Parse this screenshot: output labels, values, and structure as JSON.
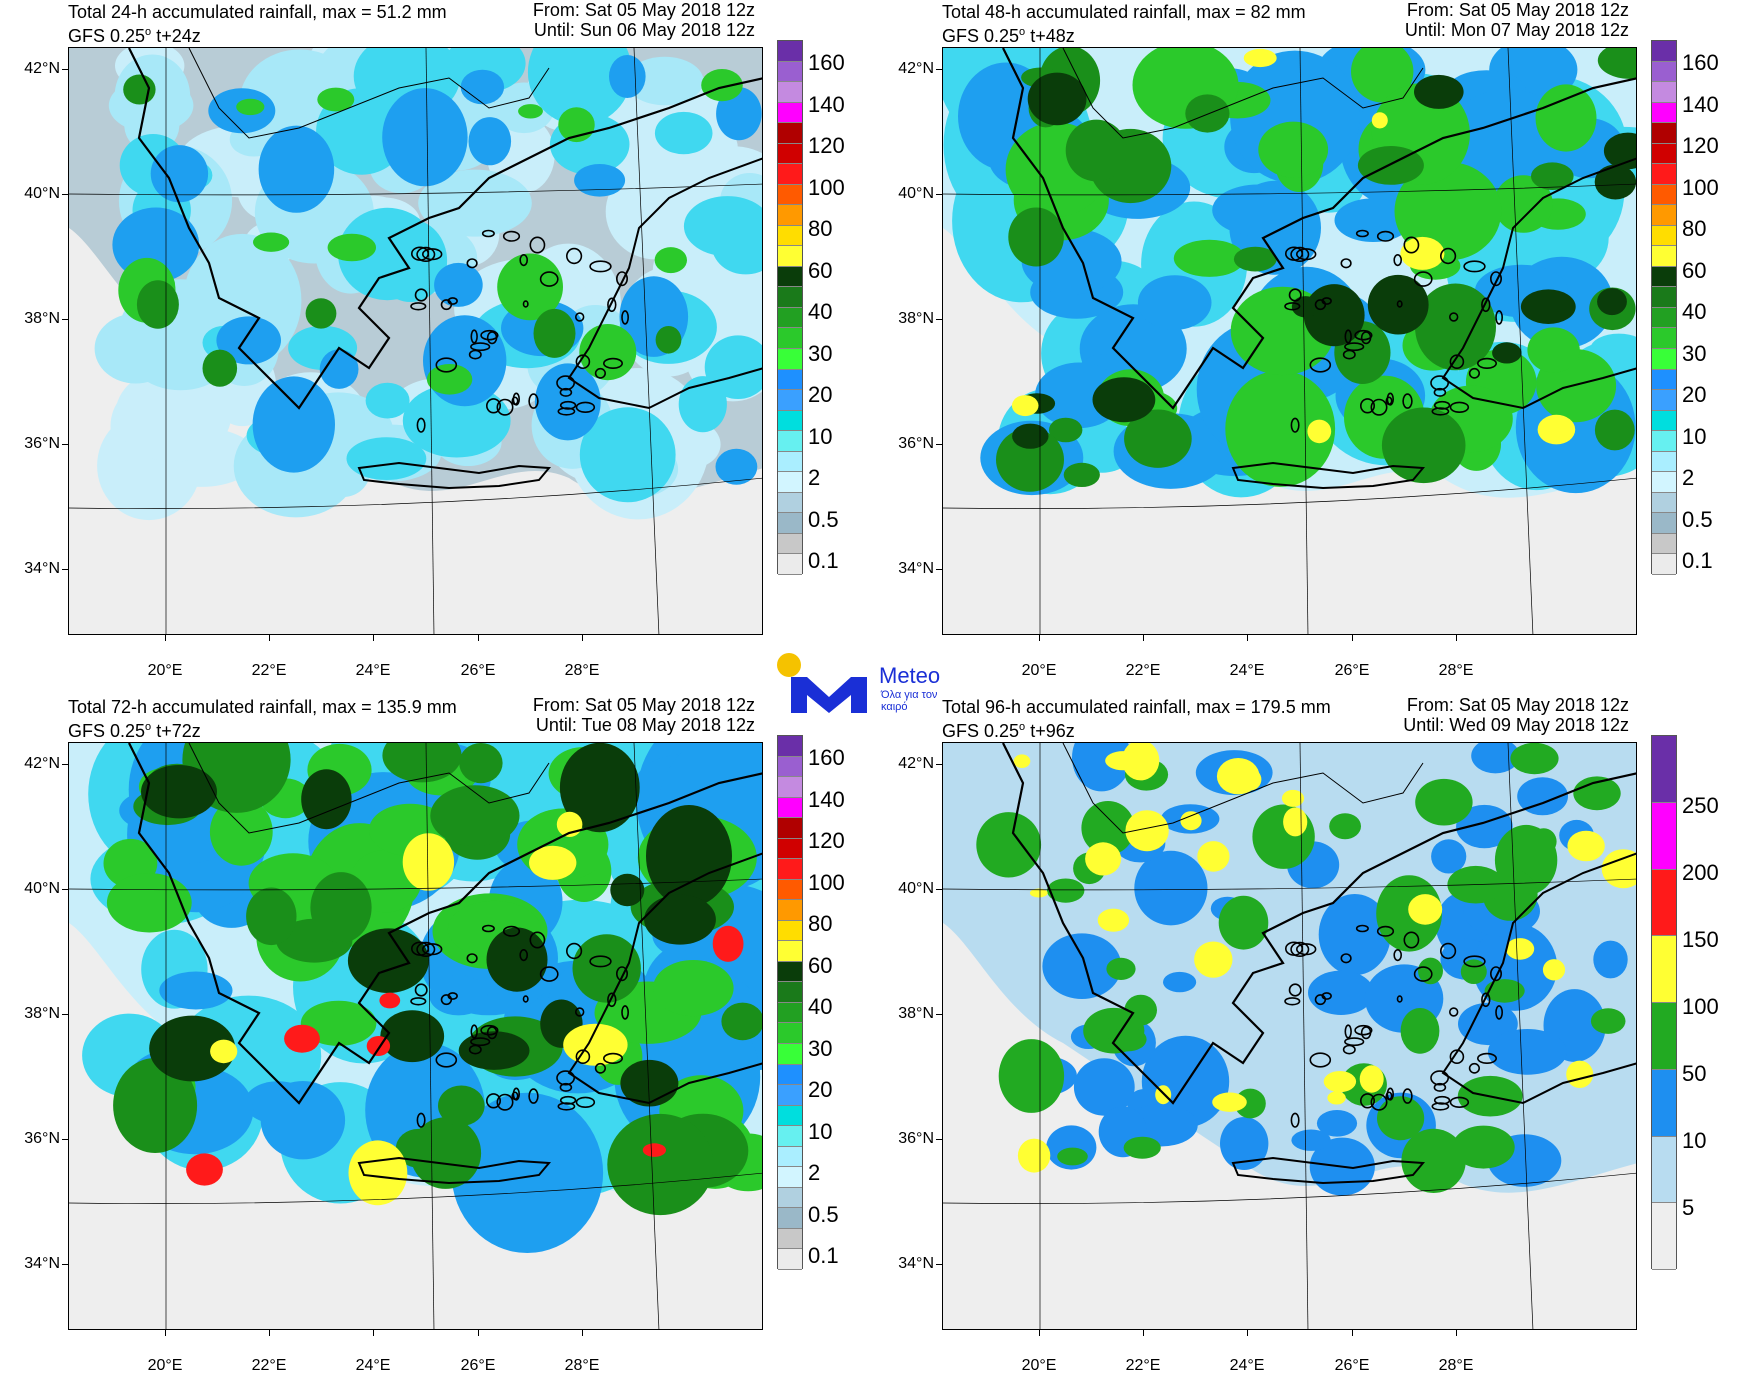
{
  "panels": [
    {
      "title": "Total 24-h accumulated rainfall, max = 51.2 mm",
      "model": "GFS 0.25",
      "degree": "o",
      "lead": "t+24z",
      "from": "From: Sat 05 May 2018 12z",
      "until": "Until: Sun 06 May 2018 12z",
      "colorbar_labels": [
        "160",
        "140",
        "120",
        "100",
        "80",
        "60",
        "40",
        "30",
        "20",
        "10",
        "2",
        "0.5",
        "0.1"
      ],
      "colorbar_colors": [
        "#6a2fa8",
        "#9a5fd0",
        "#c48ae0",
        "#ff00ff",
        "#b00000",
        "#d00000",
        "#ff1a1a",
        "#ff5a00",
        "#ff9900",
        "#ffdd00",
        "#ffff33",
        "#0a3d0a",
        "#1a7a1a",
        "#22a022",
        "#2bc92b",
        "#38ff38",
        "#1e90ff",
        "#3aa0ff",
        "#00dede",
        "#66f0f0",
        "#aaeeff",
        "#d2f5ff",
        "#b0d0e0",
        "#9ab8c8",
        "#c8c8c8",
        "#ebebeb"
      ],
      "palette": [
        "#eeeeee",
        "#b8ccd6",
        "#c9eefa",
        "#a8e8f8",
        "#40d8f0",
        "#1e9ff0",
        "#2bc92b",
        "#1a8f1a"
      ]
    },
    {
      "title": "Total 48-h accumulated rainfall, max = 82 mm",
      "model": "GFS 0.25",
      "degree": "o",
      "lead": "t+48z",
      "from": "From: Sat 05 May 2018 12z",
      "until": "Until: Mon 07 May 2018 12z",
      "colorbar_labels": [
        "160",
        "140",
        "120",
        "100",
        "80",
        "60",
        "40",
        "30",
        "20",
        "10",
        "2",
        "0.5",
        "0.1"
      ],
      "colorbar_colors": [
        "#6a2fa8",
        "#9a5fd0",
        "#c48ae0",
        "#ff00ff",
        "#b00000",
        "#d00000",
        "#ff1a1a",
        "#ff5a00",
        "#ff9900",
        "#ffdd00",
        "#ffff33",
        "#0a3d0a",
        "#1a7a1a",
        "#22a022",
        "#2bc92b",
        "#38ff38",
        "#1e90ff",
        "#3aa0ff",
        "#00dede",
        "#66f0f0",
        "#aaeeff",
        "#d2f5ff",
        "#b0d0e0",
        "#9ab8c8",
        "#c8c8c8",
        "#ebebeb"
      ],
      "palette": [
        "#eeeeee",
        "#c9eefa",
        "#40d8f0",
        "#1e9ff0",
        "#2bc92b",
        "#1a8f1a",
        "#0a3d0a",
        "#ffff33"
      ]
    },
    {
      "title": "Total 72-h accumulated rainfall, max = 135.9 mm",
      "model": "GFS 0.25",
      "degree": "o",
      "lead": "t+72z",
      "from": "From: Sat 05 May 2018 12z",
      "until": "Until: Tue 08 May 2018 12z",
      "colorbar_labels": [
        "160",
        "140",
        "120",
        "100",
        "80",
        "60",
        "40",
        "30",
        "20",
        "10",
        "2",
        "0.5",
        "0.1"
      ],
      "colorbar_colors": [
        "#6a2fa8",
        "#9a5fd0",
        "#c48ae0",
        "#ff00ff",
        "#b00000",
        "#d00000",
        "#ff1a1a",
        "#ff5a00",
        "#ff9900",
        "#ffdd00",
        "#ffff33",
        "#0a3d0a",
        "#1a7a1a",
        "#22a022",
        "#2bc92b",
        "#38ff38",
        "#1e90ff",
        "#3aa0ff",
        "#00dede",
        "#66f0f0",
        "#aaeeff",
        "#d2f5ff",
        "#b0d0e0",
        "#9ab8c8",
        "#c8c8c8",
        "#ebebeb"
      ],
      "palette": [
        "#eeeeee",
        "#c9eefa",
        "#40d8f0",
        "#1e9ff0",
        "#2bc92b",
        "#1a8f1a",
        "#0a3d0a",
        "#ffff33",
        "#ff1a1a"
      ]
    },
    {
      "title": "Total 96-h accumulated rainfall, max = 179.5 mm",
      "model": "GFS 0.25",
      "degree": "o",
      "lead": "t+96z",
      "from": "From: Sat 05 May 2018 12z",
      "until": "Until: Wed 09 May 2018 12z",
      "colorbar_labels": [
        "250",
        "200",
        "150",
        "100",
        "50",
        "10",
        "5"
      ],
      "colorbar_colors": [
        "#6a2fa8",
        "#ff00ff",
        "#ff1a1a",
        "#ffff33",
        "#22aa22",
        "#1e8ff0",
        "#b8dcf0",
        "#eeeeee"
      ],
      "palette": [
        "#eeeeee",
        "#b8dcf0",
        "#1e8ff0",
        "#22aa22",
        "#ffff33"
      ]
    }
  ],
  "axes": {
    "lat_labels": [
      "42°N",
      "40°N",
      "38°N",
      "36°N",
      "34°N"
    ],
    "lon_labels": [
      "20°E",
      "22°E",
      "24°E",
      "26°E",
      "28°E"
    ]
  },
  "logo": {
    "brand": "Meteo",
    "tagline": "Όλα για τον καιρό"
  }
}
